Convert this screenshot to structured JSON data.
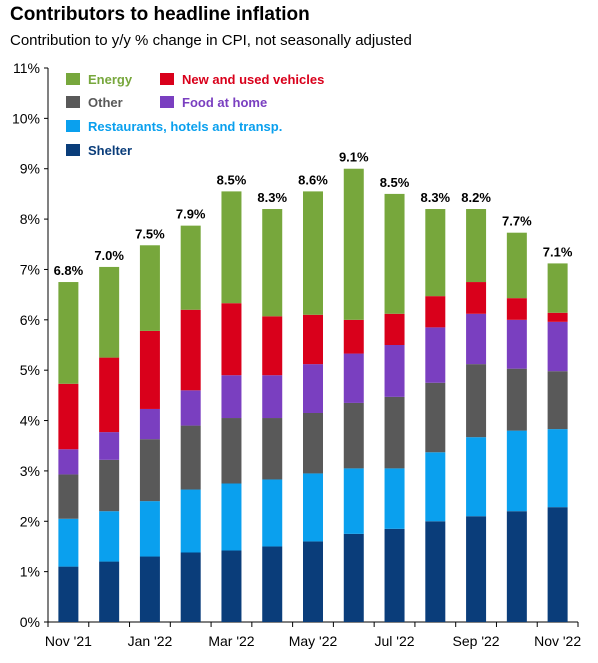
{
  "chart_data": {
    "type": "bar",
    "stacked": true,
    "title": "Contributors to headline inflation",
    "subtitle": "Contribution to y/y % change in CPI, not seasonally adjusted",
    "ylim": [
      0,
      11
    ],
    "yticks": [
      "0%",
      "1%",
      "2%",
      "3%",
      "4%",
      "5%",
      "6%",
      "7%",
      "8%",
      "9%",
      "10%",
      "11%"
    ],
    "categories": [
      "Nov '21",
      "Dec '21",
      "Jan '22",
      "Feb '22",
      "Mar '22",
      "Apr '22",
      "May '22",
      "Jun '22",
      "Jul '22",
      "Aug '22",
      "Sep '22",
      "Oct '22",
      "Nov '22"
    ],
    "xtick_labels": [
      "Nov '21",
      "",
      "Jan '22",
      "",
      "Mar '22",
      "",
      "May '22",
      "",
      "Jul '22",
      "",
      "Sep '22",
      "",
      "Nov '22"
    ],
    "totals_labels": [
      "6.8%",
      "7.0%",
      "7.5%",
      "7.9%",
      "8.5%",
      "8.3%",
      "8.6%",
      "9.1%",
      "8.5%",
      "8.3%",
      "8.2%",
      "7.7%",
      "7.1%"
    ],
    "series": [
      {
        "name": "Shelter",
        "color": "#0a3d7a",
        "values": [
          1.1,
          1.2,
          1.3,
          1.38,
          1.42,
          1.5,
          1.6,
          1.75,
          1.85,
          2.0,
          2.1,
          2.2,
          2.28
        ]
      },
      {
        "name": "Restaurants, hotels and transp.",
        "color": "#0aa0ee",
        "values": [
          0.95,
          1.0,
          1.1,
          1.25,
          1.33,
          1.33,
          1.35,
          1.3,
          1.2,
          1.37,
          1.57,
          1.6,
          1.55
        ]
      },
      {
        "name": "Other",
        "color": "#595959",
        "values": [
          0.88,
          1.02,
          1.23,
          1.27,
          1.3,
          1.22,
          1.2,
          1.3,
          1.42,
          1.38,
          1.45,
          1.23,
          1.15
        ]
      },
      {
        "name": "Food at home",
        "color": "#7a3fc0",
        "values": [
          0.5,
          0.55,
          0.6,
          0.7,
          0.85,
          0.85,
          0.97,
          0.98,
          1.03,
          1.1,
          1.0,
          0.97,
          0.98
        ]
      },
      {
        "name": "New and used vehicles",
        "color": "#d9001b",
        "values": [
          1.3,
          1.48,
          1.55,
          1.6,
          1.43,
          1.17,
          0.98,
          0.67,
          0.62,
          0.62,
          0.63,
          0.43,
          0.18
        ]
      },
      {
        "name": "Energy",
        "color": "#77a73c",
        "values": [
          2.02,
          1.8,
          1.7,
          1.67,
          2.22,
          2.13,
          2.45,
          3.0,
          2.38,
          1.73,
          1.45,
          1.3,
          0.98
        ]
      }
    ],
    "legend": [
      {
        "name": "Energy",
        "color": "#77a73c",
        "text_color": "#77a73c"
      },
      {
        "name": "New and used vehicles",
        "color": "#d9001b",
        "text_color": "#d9001b"
      },
      {
        "name": "Other",
        "color": "#595959",
        "text_color": "#595959"
      },
      {
        "name": "Food at home",
        "color": "#7a3fc0",
        "text_color": "#7a3fc0"
      },
      {
        "name": "Restaurants, hotels and transp.",
        "color": "#0aa0ee",
        "text_color": "#0aa0ee"
      },
      {
        "name": "Shelter",
        "color": "#0a3d7a",
        "text_color": "#0a3d7a"
      }
    ],
    "legend_position": "top-left",
    "grid": false
  }
}
